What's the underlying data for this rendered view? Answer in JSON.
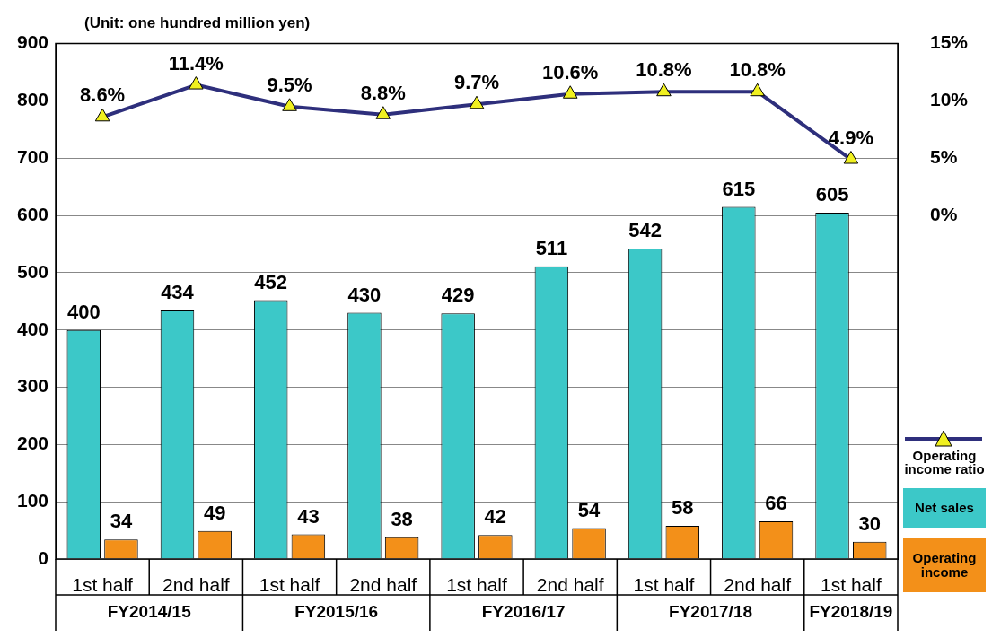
{
  "chart_data": {
    "type": "bar",
    "ylabel": "(Unit: one hundred million yen)",
    "categories": [
      "1st half",
      "2nd half",
      "1st half",
      "2nd half",
      "1st half",
      "2nd half",
      "1st half",
      "2nd half",
      "1st half"
    ],
    "annotations": [
      "FY2014/15",
      "FY2015/16",
      "FY2016/17",
      "FY2017/18",
      "FY2018/19"
    ],
    "series": [
      {
        "name": "Net sales",
        "color": "#3cc8c8",
        "values": [
          400,
          434,
          452,
          430,
          429,
          511,
          542,
          615,
          605
        ],
        "value_labels": [
          "400",
          "434",
          "452",
          "430",
          "429",
          "511",
          "542",
          "615",
          "605"
        ]
      },
      {
        "name": "Operating income",
        "color": "#f39019",
        "values": [
          34,
          49,
          43,
          38,
          42,
          54,
          58,
          66,
          30
        ],
        "value_labels": [
          "34",
          "49",
          "43",
          "38",
          "42",
          "54",
          "58",
          "66",
          "30"
        ]
      },
      {
        "name": "Operating income ratio",
        "type": "line",
        "axis": "y2",
        "color": "#2e2f7c",
        "values": [
          8.6,
          11.4,
          9.5,
          8.8,
          9.7,
          10.6,
          10.8,
          10.8,
          4.9
        ],
        "value_labels": [
          "8.6%",
          "11.4%",
          "9.5%",
          "8.8%",
          "9.7%",
          "10.6%",
          "10.8%",
          "10.8%",
          "4.9%"
        ]
      }
    ],
    "ylim": [
      0,
      900
    ],
    "yticks": [
      0,
      100,
      200,
      300,
      400,
      500,
      600,
      700,
      800,
      900
    ],
    "y2lim": [
      -30,
      15
    ],
    "y2ticks": [
      {
        "value": 0,
        "label": "0%"
      },
      {
        "value": 5,
        "label": "5%"
      },
      {
        "value": 10,
        "label": "10%"
      },
      {
        "value": 15,
        "label": "15%"
      }
    ],
    "grid": "y",
    "legend": "right",
    "marker": "triangle"
  }
}
